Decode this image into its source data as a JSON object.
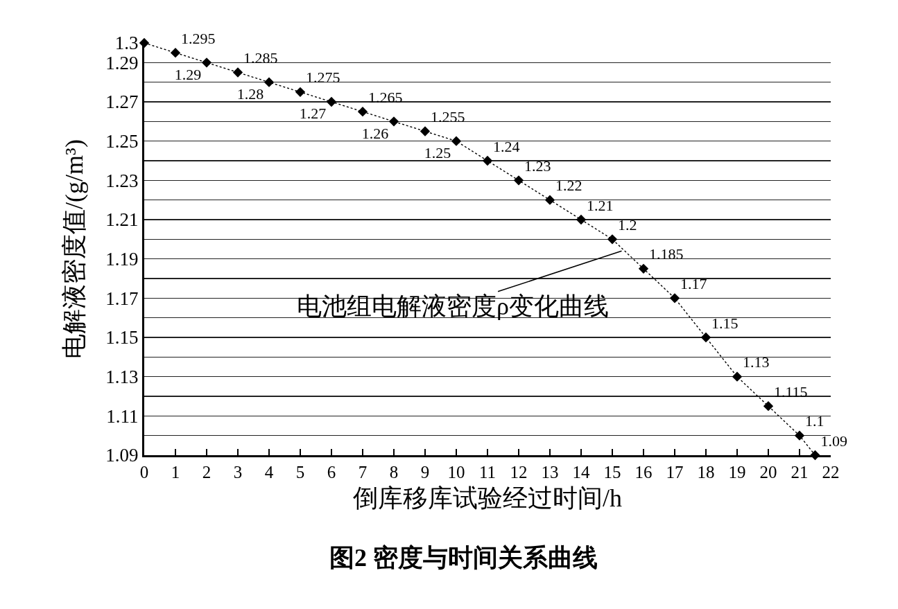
{
  "chart_data": {
    "type": "line",
    "xlabel": "倒库移库试验经过时间/h",
    "ylabel": "电解液密度值/(g/m³)",
    "x": [
      0,
      1,
      2,
      3,
      4,
      5,
      6,
      7,
      8,
      9,
      10,
      11,
      12,
      13,
      14,
      15,
      16,
      17,
      18,
      19,
      20,
      21,
      21.5
    ],
    "values": [
      1.3,
      1.295,
      1.29,
      1.285,
      1.28,
      1.275,
      1.27,
      1.265,
      1.26,
      1.255,
      1.25,
      1.24,
      1.23,
      1.22,
      1.21,
      1.2,
      1.185,
      1.17,
      1.15,
      1.13,
      1.115,
      1.1,
      1.09
    ],
    "value_labels": [
      null,
      "1.295",
      "1.29",
      "1.285",
      "1.28",
      "1.275",
      "1.27",
      "1.265",
      "1.26",
      "1.255",
      "1.25",
      "1.24",
      "1.23",
      "1.22",
      "1.21",
      "1.2",
      "1.185",
      "1.17",
      "1.15",
      "1.13",
      "1.115",
      "1.1",
      "1.09"
    ],
    "color": "#000000",
    "marker": "diamond",
    "line_style": "dotted",
    "grid": "y",
    "xlim": [
      0,
      22
    ],
    "xticks": [
      0,
      1,
      2,
      3,
      4,
      5,
      6,
      7,
      8,
      9,
      10,
      11,
      12,
      13,
      14,
      15,
      16,
      17,
      18,
      19,
      20,
      21,
      22
    ],
    "ylim": [
      1.09,
      1.3
    ],
    "yticks": [
      1.09,
      {
        "value": 1.1,
        "label": null
      },
      1.11,
      {
        "value": 1.12,
        "label": null
      },
      1.13,
      {
        "value": 1.14,
        "label": null
      },
      1.15,
      {
        "value": 1.16,
        "label": null
      },
      1.17,
      {
        "value": 1.18,
        "label": null
      },
      1.19,
      {
        "value": 1.2,
        "label": null
      },
      1.21,
      {
        "value": 1.22,
        "label": null
      },
      1.23,
      {
        "value": 1.24,
        "label": null
      },
      1.25,
      {
        "value": 1.26,
        "label": null
      },
      1.27,
      {
        "value": 1.28,
        "label": null
      },
      1.29,
      1.3
    ],
    "annotations": [
      {
        "text": "电池组电解液密度ρ变化曲线",
        "x": 15.3,
        "y": 1.194
      },
      "图2 密度与时间关系曲线"
    ]
  }
}
